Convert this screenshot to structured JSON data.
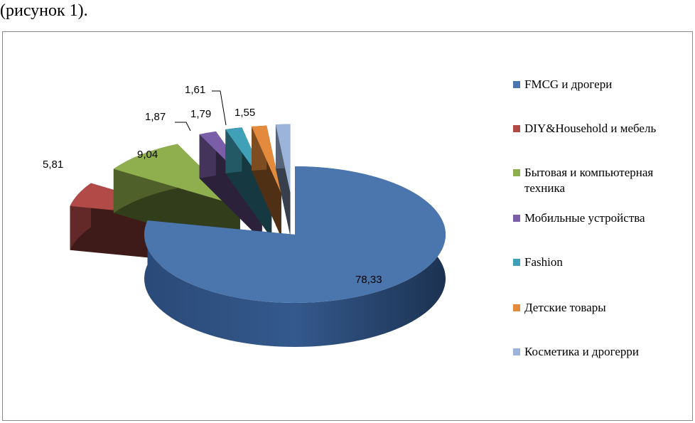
{
  "caption": "(рисунок 1).",
  "chart_data": {
    "type": "pie",
    "style": "3d-exploded",
    "legend_position": "right",
    "slices": [
      {
        "label": "FMCG и дрогери",
        "value": 78.33,
        "value_label": "78,33",
        "color": "#4a76ad"
      },
      {
        "label": "DIY&Household и мебель",
        "value": 5.81,
        "value_label": "5,81",
        "color": "#b24a48"
      },
      {
        "label": "Бытовая и компьютерная техника",
        "value": 9.04,
        "value_label": "9,04",
        "color": "#8fae4e"
      },
      {
        "label": "Мобильные устройства",
        "value": 1.87,
        "value_label": "1,87",
        "color": "#7b5ea8"
      },
      {
        "label": "Fashion",
        "value": 1.79,
        "value_label": "1,79",
        "color": "#3fa0b8"
      },
      {
        "label": "Детские товары",
        "value": 1.61,
        "value_label": "1,61",
        "color": "#e38a3c"
      },
      {
        "label": "Косметика и дрогерри",
        "value": 1.55,
        "value_label": "1,55",
        "color": "#9db4da"
      }
    ]
  }
}
